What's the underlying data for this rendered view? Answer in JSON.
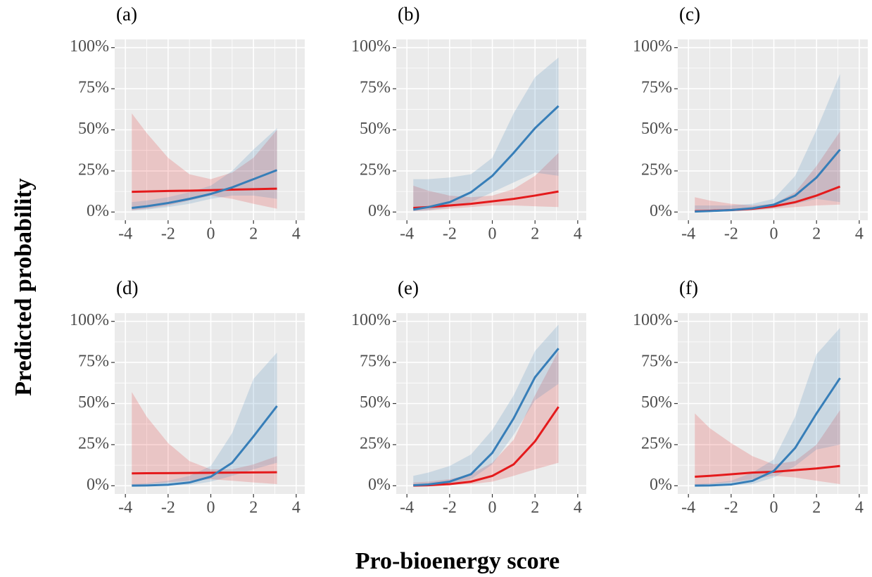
{
  "ylabel": "Predicted probability",
  "xlabel": "Pro-bioenergy score",
  "chart_data": [
    {
      "type": "line",
      "title": "(a)",
      "x": [
        -3.7,
        -3,
        -2,
        -1,
        0,
        1,
        2,
        3.1
      ],
      "series": [
        {
          "color": "#e41a1c",
          "values": [
            12.3,
            12.5,
            12.8,
            13,
            13.3,
            13.6,
            13.9,
            14.2
          ],
          "lower": [
            1,
            2,
            4,
            7,
            10,
            8,
            5,
            2
          ],
          "upper": [
            60,
            48,
            33,
            23,
            20,
            24,
            33,
            50
          ]
        },
        {
          "color": "#377eb8",
          "values": [
            2.5,
            3.5,
            5.5,
            8,
            11,
            15,
            20,
            25.5
          ],
          "lower": [
            1,
            1.5,
            3,
            5,
            8,
            10,
            10,
            8
          ],
          "upper": [
            6,
            7,
            9,
            12,
            16,
            25,
            38,
            51
          ]
        }
      ],
      "xlim": [
        -4.5,
        4.4
      ],
      "ylim": [
        -5,
        105
      ],
      "xticks": [
        -4,
        -2,
        0,
        2,
        4
      ],
      "yticks": [
        {
          "value": 0,
          "label": "0%"
        },
        {
          "value": 25,
          "label": "25%"
        },
        {
          "value": 50,
          "label": "50%"
        },
        {
          "value": 75,
          "label": "75%"
        },
        {
          "value": 100,
          "label": "100%"
        }
      ],
      "grid": true
    },
    {
      "type": "line",
      "title": "(b)",
      "x": [
        -3.7,
        -3,
        -2,
        -1,
        0,
        1,
        2,
        3.1
      ],
      "series": [
        {
          "color": "#e41a1c",
          "values": [
            2.5,
            3,
            4,
            5,
            6.5,
            8,
            10,
            12.5
          ],
          "lower": [
            0.5,
            1,
            2,
            3,
            4,
            4,
            3.5,
            3
          ],
          "upper": [
            16,
            13,
            10,
            9,
            10,
            14,
            22,
            36
          ]
        },
        {
          "color": "#377eb8",
          "values": [
            1.5,
            3,
            6,
            12,
            22,
            36,
            51,
            64.5
          ],
          "lower": [
            0.5,
            1,
            3,
            6,
            12,
            18,
            24,
            22
          ],
          "upper": [
            20,
            20,
            21,
            23,
            33,
            60,
            82,
            94
          ]
        }
      ],
      "xlim": [
        -4.5,
        4.4
      ],
      "ylim": [
        -5,
        105
      ],
      "xticks": [
        -4,
        -2,
        0,
        2,
        4
      ],
      "yticks": [
        {
          "value": 0,
          "label": "0%"
        },
        {
          "value": 25,
          "label": "25%"
        },
        {
          "value": 50,
          "label": "50%"
        },
        {
          "value": 75,
          "label": "75%"
        },
        {
          "value": 100,
          "label": "100%"
        }
      ],
      "grid": true
    },
    {
      "type": "line",
      "title": "(c)",
      "x": [
        -3.7,
        -3,
        -2,
        -1,
        0,
        1,
        2,
        3.1
      ],
      "series": [
        {
          "color": "#e41a1c",
          "values": [
            0.5,
            0.8,
            1.2,
            2,
            3.5,
            6,
            10,
            15.5
          ],
          "lower": [
            0.1,
            0.2,
            0.5,
            1,
            2,
            3,
            4,
            4.5
          ],
          "upper": [
            9,
            7,
            5,
            4,
            5,
            12,
            28,
            49
          ]
        },
        {
          "color": "#377eb8",
          "values": [
            0.3,
            0.6,
            1.2,
            2.3,
            4.5,
            10,
            21,
            38
          ],
          "lower": [
            0,
            0.1,
            0.3,
            1,
            2.5,
            5,
            8,
            6
          ],
          "upper": [
            4,
            4,
            4,
            5,
            8,
            22,
            50,
            84
          ]
        }
      ],
      "xlim": [
        -4.5,
        4.4
      ],
      "ylim": [
        -5,
        105
      ],
      "xticks": [
        -4,
        -2,
        0,
        2,
        4
      ],
      "yticks": [
        {
          "value": 0,
          "label": "0%"
        },
        {
          "value": 25,
          "label": "25%"
        },
        {
          "value": 50,
          "label": "50%"
        },
        {
          "value": 75,
          "label": "75%"
        },
        {
          "value": 100,
          "label": "100%"
        }
      ],
      "grid": true
    },
    {
      "type": "line",
      "title": "(d)",
      "x": [
        -3.7,
        -3,
        -2,
        -1,
        0,
        1,
        2,
        3.1
      ],
      "series": [
        {
          "color": "#e41a1c",
          "values": [
            7.5,
            7.6,
            7.7,
            7.8,
            7.9,
            8,
            8.1,
            8.2
          ],
          "lower": [
            0.5,
            1,
            2,
            3,
            4,
            3,
            2,
            1
          ],
          "upper": [
            57,
            42,
            26,
            15,
            10,
            10,
            13,
            18
          ]
        },
        {
          "color": "#377eb8",
          "values": [
            0.1,
            0.2,
            0.6,
            2,
            5.5,
            14,
            30,
            48.5
          ],
          "lower": [
            0,
            0,
            0.1,
            0.5,
            2.5,
            6,
            10,
            14
          ],
          "upper": [
            1,
            1.5,
            3,
            6,
            12,
            32,
            65,
            81
          ]
        }
      ],
      "xlim": [
        -4.5,
        4.4
      ],
      "ylim": [
        -5,
        105
      ],
      "xticks": [
        -4,
        -2,
        0,
        2,
        4
      ],
      "yticks": [
        {
          "value": 0,
          "label": "0%"
        },
        {
          "value": 25,
          "label": "25%"
        },
        {
          "value": 50,
          "label": "50%"
        },
        {
          "value": 75,
          "label": "75%"
        },
        {
          "value": 100,
          "label": "100%"
        }
      ],
      "grid": true
    },
    {
      "type": "line",
      "title": "(e)",
      "x": [
        -3.7,
        -3,
        -2,
        -1,
        0,
        1,
        2,
        3.1
      ],
      "series": [
        {
          "color": "#e41a1c",
          "values": [
            0.1,
            0.3,
            1,
            2.5,
            6,
            13,
            27,
            48
          ],
          "lower": [
            0,
            0.1,
            0.5,
            1,
            2.5,
            6,
            10,
            14
          ],
          "upper": [
            2,
            2.5,
            4,
            7,
            14,
            28,
            55,
            82
          ]
        },
        {
          "color": "#377eb8",
          "values": [
            0.3,
            0.8,
            2.5,
            7,
            20,
            41,
            66,
            83.5
          ],
          "lower": [
            0,
            0.2,
            1,
            4,
            13,
            31,
            52,
            62
          ],
          "upper": [
            6,
            8,
            12,
            19,
            34,
            55,
            82,
            98
          ]
        }
      ],
      "xlim": [
        -4.5,
        4.4
      ],
      "ylim": [
        -5,
        105
      ],
      "xticks": [
        -4,
        -2,
        0,
        2,
        4
      ],
      "yticks": [
        {
          "value": 0,
          "label": "0%"
        },
        {
          "value": 25,
          "label": "25%"
        },
        {
          "value": 50,
          "label": "50%"
        },
        {
          "value": 75,
          "label": "75%"
        },
        {
          "value": 100,
          "label": "100%"
        }
      ],
      "grid": true
    },
    {
      "type": "line",
      "title": "(f)",
      "x": [
        -3.7,
        -3,
        -2,
        -1,
        0,
        1,
        2,
        3.1
      ],
      "series": [
        {
          "color": "#e41a1c",
          "values": [
            5.5,
            6,
            7,
            8,
            8.5,
            9.5,
            10.5,
            12
          ],
          "lower": [
            0.5,
            1,
            2,
            4,
            6,
            5,
            3,
            1
          ],
          "upper": [
            44,
            35,
            26,
            18,
            13,
            15,
            25,
            46
          ]
        },
        {
          "color": "#377eb8",
          "values": [
            0.1,
            0.2,
            0.8,
            3,
            9,
            23,
            44,
            65.5
          ],
          "lower": [
            0,
            0,
            0.2,
            1,
            5,
            12,
            22,
            25
          ],
          "upper": [
            1,
            1.5,
            3,
            8,
            16,
            42,
            80,
            96
          ]
        }
      ],
      "xlim": [
        -4.5,
        4.4
      ],
      "ylim": [
        -5,
        105
      ],
      "xticks": [
        -4,
        -2,
        0,
        2,
        4
      ],
      "yticks": [
        {
          "value": 0,
          "label": "0%"
        },
        {
          "value": 25,
          "label": "25%"
        },
        {
          "value": 50,
          "label": "50%"
        },
        {
          "value": 75,
          "label": "75%"
        },
        {
          "value": 100,
          "label": "100%"
        }
      ],
      "grid": true
    }
  ]
}
